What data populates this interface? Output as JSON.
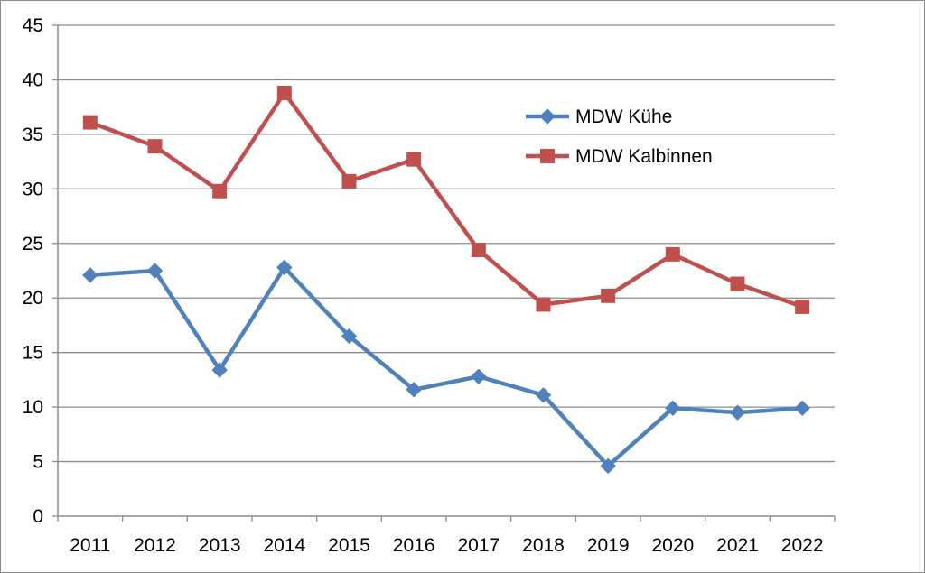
{
  "chart_data": {
    "type": "line",
    "title": "",
    "xlabel": "",
    "ylabel": "",
    "categories": [
      "2011",
      "2012",
      "2013",
      "2014",
      "2015",
      "2016",
      "2017",
      "2018",
      "2019",
      "2020",
      "2021",
      "2022"
    ],
    "ylim": [
      0,
      45
    ],
    "yticks": [
      0,
      5,
      10,
      15,
      20,
      25,
      30,
      35,
      40,
      45
    ],
    "grid": "horizontal",
    "legend_position": "top-right (inside plot)",
    "series": [
      {
        "name": "MDW Kühe",
        "color": "#4f81bd",
        "marker": "diamond",
        "values": [
          22.1,
          22.5,
          13.4,
          22.8,
          16.5,
          11.6,
          12.8,
          11.1,
          4.6,
          9.9,
          9.5,
          9.9
        ]
      },
      {
        "name": "MDW Kalbinnen",
        "color": "#c0504d",
        "marker": "square",
        "values": [
          36.1,
          33.9,
          29.8,
          38.8,
          30.7,
          32.7,
          24.4,
          19.4,
          20.2,
          24.0,
          21.3,
          19.2
        ]
      }
    ]
  }
}
